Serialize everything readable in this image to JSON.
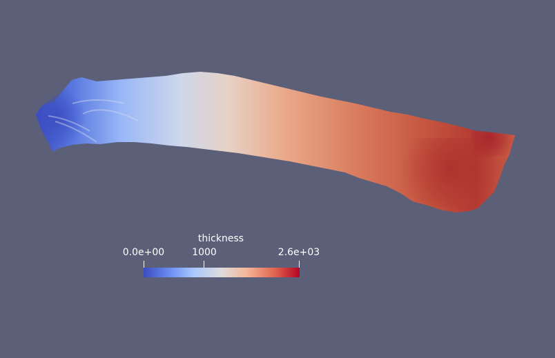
{
  "viewport": {
    "background": "#5b5f78"
  },
  "legend": {
    "title": "thickness",
    "ticks": [
      {
        "label": "0.0e+00",
        "value": 0
      },
      {
        "label": "1000",
        "value": 1000
      },
      {
        "label": "2.6e+03",
        "value": 2600
      }
    ],
    "range": [
      0,
      2600
    ],
    "colormap": {
      "name": "cool-to-warm",
      "low": "#3b4cc0",
      "mid": "#dddcdc",
      "high": "#b40426"
    }
  }
}
